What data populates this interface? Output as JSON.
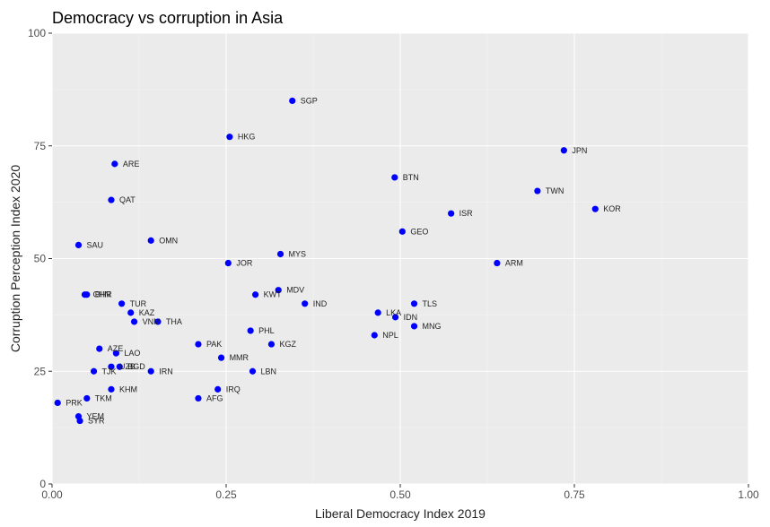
{
  "chart_data": {
    "type": "scatter",
    "title": "Democracy vs corruption in Asia",
    "xlabel": "Liberal Democracy Index 2019",
    "ylabel": "Corruption Perception Index 2020",
    "xlim": [
      0,
      1
    ],
    "ylim": [
      0,
      100
    ],
    "x_ticks": [
      "0.00",
      "0.25",
      "0.50",
      "0.75",
      "1.00"
    ],
    "y_ticks": [
      "0",
      "25",
      "50",
      "75",
      "100"
    ],
    "grid": true,
    "legend": "none",
    "point_color": "#0000ff",
    "panel_color": "#ebebeb",
    "points": [
      {
        "label": "SGP",
        "x": 0.345,
        "y": 85
      },
      {
        "label": "HKG",
        "x": 0.255,
        "y": 77
      },
      {
        "label": "JPN",
        "x": 0.735,
        "y": 74
      },
      {
        "label": "ARE",
        "x": 0.09,
        "y": 71
      },
      {
        "label": "BTN",
        "x": 0.492,
        "y": 68
      },
      {
        "label": "TWN",
        "x": 0.697,
        "y": 65
      },
      {
        "label": "QAT",
        "x": 0.085,
        "y": 63
      },
      {
        "label": "KOR",
        "x": 0.78,
        "y": 61
      },
      {
        "label": "ISR",
        "x": 0.573,
        "y": 60
      },
      {
        "label": "GEO",
        "x": 0.503,
        "y": 56
      },
      {
        "label": "OMN",
        "x": 0.142,
        "y": 54
      },
      {
        "label": "SAU",
        "x": 0.038,
        "y": 53
      },
      {
        "label": "MYS",
        "x": 0.328,
        "y": 51
      },
      {
        "label": "JOR",
        "x": 0.253,
        "y": 49
      },
      {
        "label": "ARM",
        "x": 0.639,
        "y": 49
      },
      {
        "label": "MDV",
        "x": 0.325,
        "y": 43
      },
      {
        "label": "CHN",
        "x": 0.047,
        "y": 42
      },
      {
        "label": "BHR",
        "x": 0.05,
        "y": 42
      },
      {
        "label": "KWT",
        "x": 0.292,
        "y": 42
      },
      {
        "label": "TUR",
        "x": 0.1,
        "y": 40
      },
      {
        "label": "IND",
        "x": 0.363,
        "y": 40
      },
      {
        "label": "TLS",
        "x": 0.52,
        "y": 40
      },
      {
        "label": "KAZ",
        "x": 0.113,
        "y": 38
      },
      {
        "label": "LKA",
        "x": 0.468,
        "y": 38
      },
      {
        "label": "IDN",
        "x": 0.493,
        "y": 37
      },
      {
        "label": "VNM",
        "x": 0.118,
        "y": 36
      },
      {
        "label": "THA",
        "x": 0.152,
        "y": 36
      },
      {
        "label": "MNG",
        "x": 0.52,
        "y": 35
      },
      {
        "label": "PHL",
        "x": 0.285,
        "y": 34
      },
      {
        "label": "NPL",
        "x": 0.463,
        "y": 33
      },
      {
        "label": "PAK",
        "x": 0.21,
        "y": 31
      },
      {
        "label": "KGZ",
        "x": 0.315,
        "y": 31
      },
      {
        "label": "AZE",
        "x": 0.068,
        "y": 30
      },
      {
        "label": "LAO",
        "x": 0.092,
        "y": 29
      },
      {
        "label": "MMR",
        "x": 0.243,
        "y": 28
      },
      {
        "label": "UZB",
        "x": 0.085,
        "y": 26
      },
      {
        "label": "BGD",
        "x": 0.097,
        "y": 26
      },
      {
        "label": "TJK",
        "x": 0.06,
        "y": 25
      },
      {
        "label": "IRN",
        "x": 0.142,
        "y": 25
      },
      {
        "label": "LBN",
        "x": 0.288,
        "y": 25
      },
      {
        "label": "KHM",
        "x": 0.085,
        "y": 21
      },
      {
        "label": "IRQ",
        "x": 0.238,
        "y": 21
      },
      {
        "label": "TKM",
        "x": 0.05,
        "y": 19
      },
      {
        "label": "AFG",
        "x": 0.21,
        "y": 19
      },
      {
        "label": "PRK",
        "x": 0.008,
        "y": 18
      },
      {
        "label": "YEM",
        "x": 0.038,
        "y": 15
      },
      {
        "label": "SYR",
        "x": 0.04,
        "y": 14
      }
    ]
  }
}
